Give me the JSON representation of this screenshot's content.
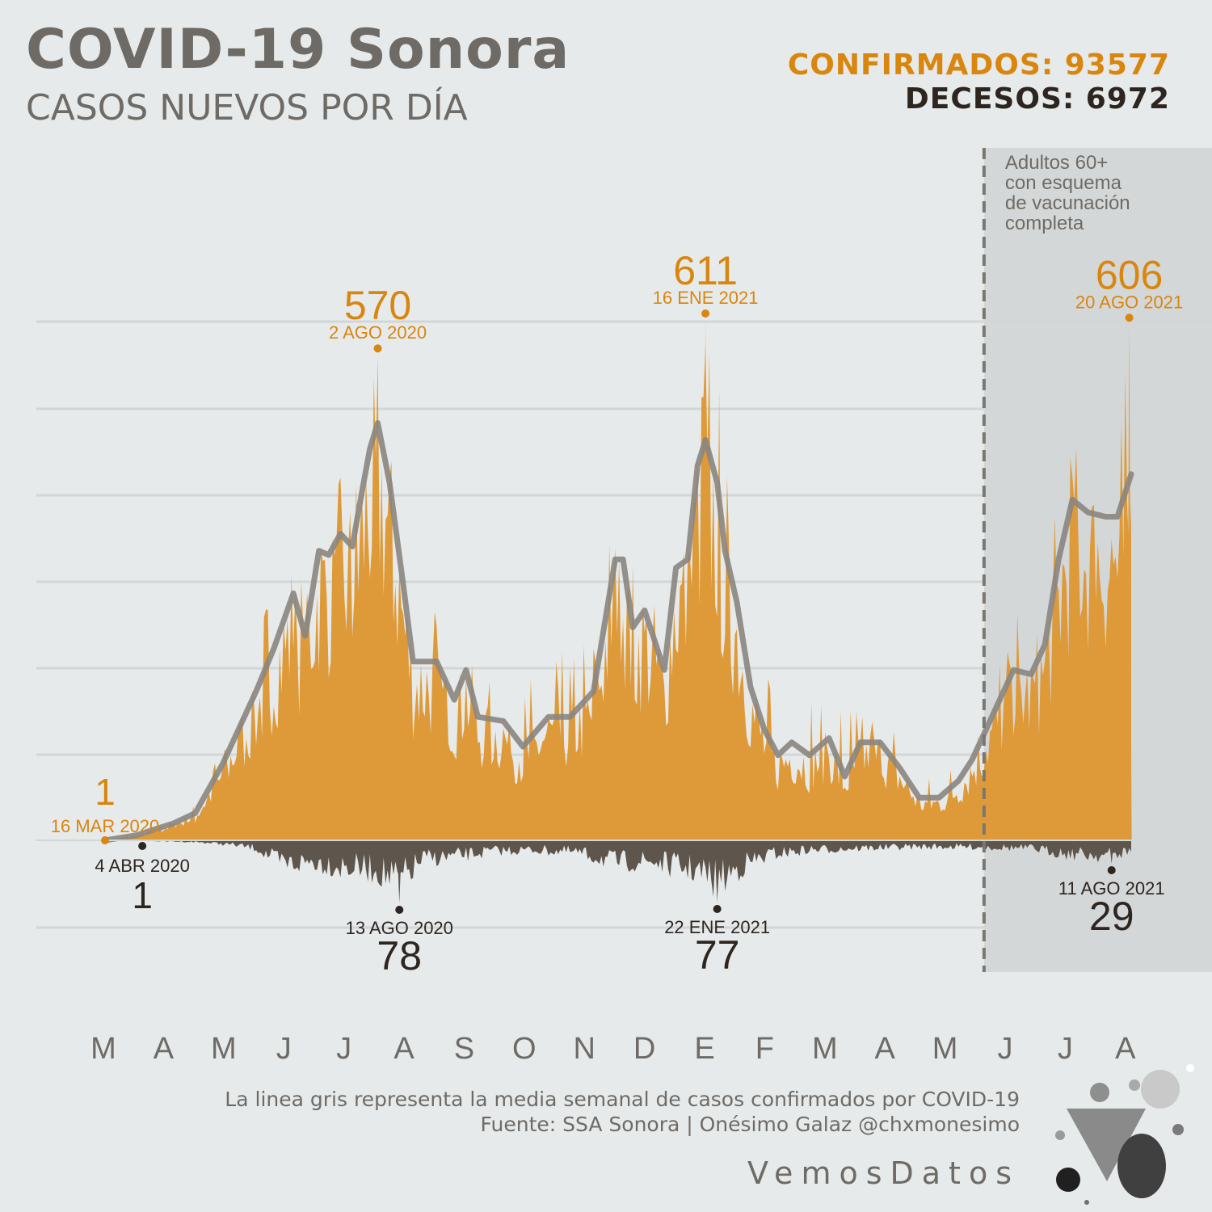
{
  "header": {
    "title": "COVID-19 Sonora",
    "subtitle": "CASOS NUEVOS POR DÍA",
    "confirmados": "CONFIRMADOS: 93577",
    "decesos": "DECESOS: 6972"
  },
  "colors": {
    "cases": "#d9860f",
    "cases_fill": "#de9a38",
    "deaths": "#5e554d",
    "average": "#8a8580",
    "text": "#6e6b66",
    "dark": "#2c2520",
    "background": "#e7eaea",
    "shade": "#d4d7d7"
  },
  "chart_data": {
    "type": "area",
    "x_range": [
      "2020-03-16",
      "2021-08-21"
    ],
    "ylim_cases": [
      0,
      611
    ],
    "ylim_deaths": [
      0,
      78
    ],
    "grid": true,
    "month_ticks": [
      "M",
      "A",
      "M",
      "J",
      "J",
      "A",
      "S",
      "O",
      "N",
      "D",
      "E",
      "F",
      "M",
      "A",
      "M",
      "J",
      "J",
      "A"
    ],
    "cases_weekly_avg": [
      [
        "2020-03-16",
        0
      ],
      [
        "2020-04-01",
        6
      ],
      [
        "2020-04-20",
        20
      ],
      [
        "2020-05-01",
        32
      ],
      [
        "2020-05-15",
        90
      ],
      [
        "2020-06-01",
        175
      ],
      [
        "2020-06-10",
        225
      ],
      [
        "2020-06-20",
        290
      ],
      [
        "2020-06-26",
        240
      ],
      [
        "2020-07-03",
        340
      ],
      [
        "2020-07-08",
        335
      ],
      [
        "2020-07-14",
        360
      ],
      [
        "2020-07-20",
        345
      ],
      [
        "2020-07-25",
        410
      ],
      [
        "2020-07-29",
        460
      ],
      [
        "2020-08-02",
        490
      ],
      [
        "2020-08-08",
        420
      ],
      [
        "2020-08-15",
        300
      ],
      [
        "2020-08-20",
        210
      ],
      [
        "2020-09-01",
        210
      ],
      [
        "2020-09-10",
        165
      ],
      [
        "2020-09-16",
        200
      ],
      [
        "2020-09-22",
        145
      ],
      [
        "2020-10-05",
        140
      ],
      [
        "2020-10-15",
        110
      ],
      [
        "2020-10-28",
        145
      ],
      [
        "2020-11-08",
        145
      ],
      [
        "2020-11-20",
        175
      ],
      [
        "2020-12-01",
        330
      ],
      [
        "2020-12-05",
        330
      ],
      [
        "2020-12-10",
        250
      ],
      [
        "2020-12-16",
        270
      ],
      [
        "2020-12-26",
        200
      ],
      [
        "2021-01-01",
        320
      ],
      [
        "2021-01-07",
        330
      ],
      [
        "2021-01-12",
        440
      ],
      [
        "2021-01-16",
        470
      ],
      [
        "2021-01-22",
        420
      ],
      [
        "2021-01-26",
        340
      ],
      [
        "2021-02-01",
        280
      ],
      [
        "2021-02-08",
        180
      ],
      [
        "2021-02-15",
        130
      ],
      [
        "2021-02-22",
        100
      ],
      [
        "2021-03-01",
        115
      ],
      [
        "2021-03-10",
        100
      ],
      [
        "2021-03-20",
        120
      ],
      [
        "2021-03-28",
        75
      ],
      [
        "2021-04-05",
        115
      ],
      [
        "2021-04-15",
        115
      ],
      [
        "2021-04-25",
        85
      ],
      [
        "2021-05-05",
        50
      ],
      [
        "2021-05-15",
        50
      ],
      [
        "2021-05-25",
        70
      ],
      [
        "2021-06-01",
        95
      ],
      [
        "2021-06-12",
        150
      ],
      [
        "2021-06-22",
        200
      ],
      [
        "2021-07-01",
        195
      ],
      [
        "2021-07-08",
        230
      ],
      [
        "2021-07-15",
        330
      ],
      [
        "2021-07-22",
        400
      ],
      [
        "2021-07-30",
        385
      ],
      [
        "2021-08-08",
        380
      ],
      [
        "2021-08-14",
        380
      ],
      [
        "2021-08-21",
        430
      ]
    ],
    "cases_envelope": [
      [
        "2020-03-16",
        0
      ],
      [
        "2020-04-05",
        8
      ],
      [
        "2020-04-20",
        25
      ],
      [
        "2020-05-01",
        50
      ],
      [
        "2020-05-15",
        120
      ],
      [
        "2020-06-01",
        230
      ],
      [
        "2020-06-10",
        320
      ],
      [
        "2020-06-15",
        420
      ],
      [
        "2020-06-20",
        400
      ],
      [
        "2020-06-26",
        300
      ],
      [
        "2020-07-03",
        420
      ],
      [
        "2020-07-15",
        430
      ],
      [
        "2020-07-25",
        470
      ],
      [
        "2020-08-02",
        570
      ],
      [
        "2020-08-10",
        480
      ],
      [
        "2020-08-15",
        380
      ],
      [
        "2020-08-22",
        310
      ],
      [
        "2020-09-01",
        270
      ],
      [
        "2020-09-15",
        260
      ],
      [
        "2020-10-01",
        220
      ],
      [
        "2020-10-15",
        180
      ],
      [
        "2020-10-29",
        220
      ],
      [
        "2020-11-10",
        230
      ],
      [
        "2020-11-25",
        280
      ],
      [
        "2020-12-01",
        440
      ],
      [
        "2020-12-08",
        360
      ],
      [
        "2020-12-16",
        340
      ],
      [
        "2020-12-26",
        280
      ],
      [
        "2021-01-05",
        400
      ],
      [
        "2021-01-12",
        560
      ],
      [
        "2021-01-16",
        611
      ],
      [
        "2021-01-22",
        560
      ],
      [
        "2021-01-28",
        420
      ],
      [
        "2021-02-05",
        350
      ],
      [
        "2021-02-12",
        250
      ],
      [
        "2021-02-22",
        170
      ],
      [
        "2021-03-05",
        170
      ],
      [
        "2021-03-20",
        170
      ],
      [
        "2021-04-05",
        160
      ],
      [
        "2021-04-20",
        140
      ],
      [
        "2021-05-05",
        90
      ],
      [
        "2021-05-20",
        90
      ],
      [
        "2021-06-01",
        140
      ],
      [
        "2021-06-12",
        210
      ],
      [
        "2021-06-25",
        280
      ],
      [
        "2021-07-08",
        330
      ],
      [
        "2021-07-15",
        420
      ],
      [
        "2021-07-25",
        520
      ],
      [
        "2021-08-05",
        510
      ],
      [
        "2021-08-15",
        470
      ],
      [
        "2021-08-20",
        606
      ]
    ],
    "deaths_envelope": [
      [
        "2020-03-16",
        0
      ],
      [
        "2020-04-04",
        1
      ],
      [
        "2020-05-01",
        3
      ],
      [
        "2020-05-20",
        8
      ],
      [
        "2020-06-01",
        15
      ],
      [
        "2020-06-15",
        45
      ],
      [
        "2020-07-01",
        40
      ],
      [
        "2020-07-15",
        50
      ],
      [
        "2020-08-01",
        55
      ],
      [
        "2020-08-13",
        78
      ],
      [
        "2020-08-25",
        35
      ],
      [
        "2020-09-10",
        30
      ],
      [
        "2020-10-01",
        20
      ],
      [
        "2020-10-20",
        18
      ],
      [
        "2020-11-10",
        22
      ],
      [
        "2020-12-01",
        40
      ],
      [
        "2020-12-20",
        40
      ],
      [
        "2021-01-10",
        55
      ],
      [
        "2021-01-22",
        77
      ],
      [
        "2021-02-05",
        45
      ],
      [
        "2021-02-20",
        25
      ],
      [
        "2021-03-10",
        18
      ],
      [
        "2021-04-01",
        15
      ],
      [
        "2021-05-01",
        12
      ],
      [
        "2021-06-01",
        12
      ],
      [
        "2021-07-01",
        15
      ],
      [
        "2021-07-20",
        25
      ],
      [
        "2021-08-11",
        29
      ],
      [
        "2021-08-20",
        20
      ]
    ],
    "vaccination_marker_date": "2021-06-07",
    "annotations": {
      "vaccination": [
        "Adultos 60+",
        "con esquema",
        "de vacunación",
        "completa"
      ],
      "first_case": {
        "date": "2020-03-16",
        "value": "1",
        "label": "16 MAR 2020"
      },
      "first_death": {
        "date": "2020-04-04",
        "value": "1",
        "label": "4 ABR 2020"
      },
      "peak_cases": [
        {
          "date": "2020-08-02",
          "value": "570",
          "label": "2 AGO 2020"
        },
        {
          "date": "2021-01-16",
          "value": "611",
          "label": "16 ENE 2021"
        },
        {
          "date": "2021-08-20",
          "value": "606",
          "label": "20 AGO 2021"
        }
      ],
      "peak_deaths": [
        {
          "date": "2020-08-13",
          "value": "78",
          "label": "13 AGO 2020"
        },
        {
          "date": "2021-01-22",
          "value": "77",
          "label": "22 ENE 2021"
        },
        {
          "date": "2021-08-11",
          "value": "29",
          "label": "11 AGO 2021"
        }
      ]
    }
  },
  "footer": {
    "note": "La linea gris representa la media semanal de casos confirmados por COVID-19",
    "source": "Fuente: SSA Sonora | Onésimo Galaz @chxmonesimo",
    "brand": "VemosDatos"
  },
  "logo_icon": "vemosdatos-logo-icon"
}
